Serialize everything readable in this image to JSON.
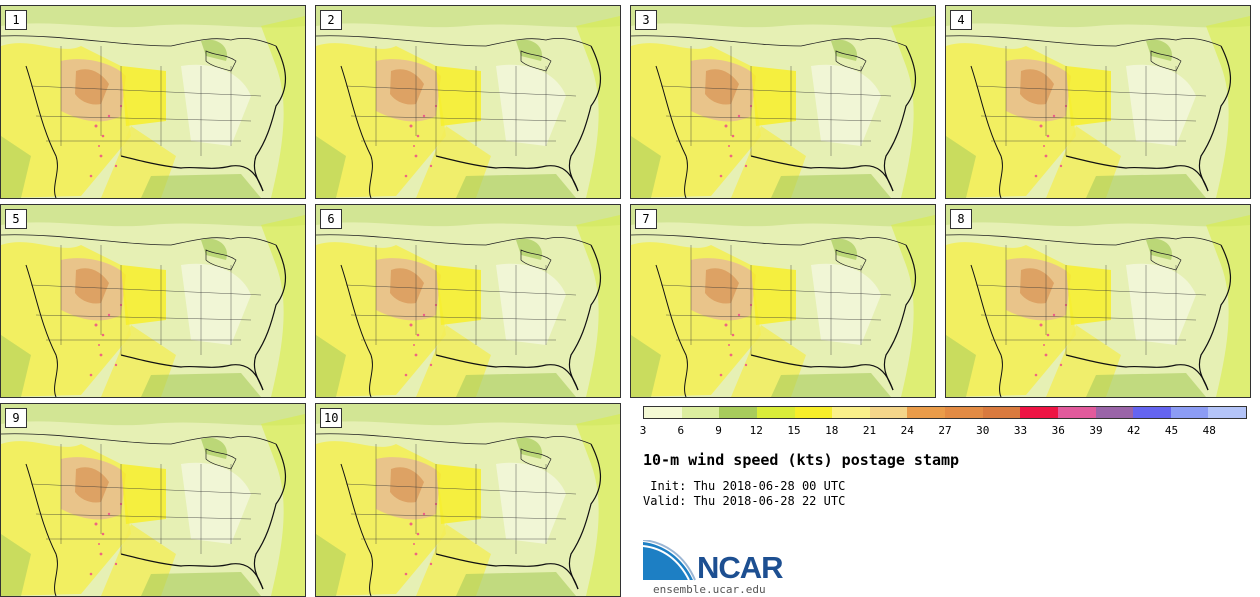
{
  "figure": {
    "title": "10-m wind speed (kts) postage stamp",
    "init": " Init: Thu 2018-06-28 00 UTC",
    "valid": "Valid: Thu 2018-06-28 22 UTC",
    "source": "ensemble.ucar.edu",
    "logo_text": "NCAR"
  },
  "members": [
    "1",
    "2",
    "3",
    "4",
    "5",
    "6",
    "7",
    "8",
    "9",
    "10"
  ],
  "colorbar": {
    "ticks": [
      "3",
      "6",
      "9",
      "12",
      "15",
      "18",
      "21",
      "24",
      "27",
      "30",
      "33",
      "36",
      "39",
      "42",
      "45",
      "48"
    ],
    "colors": [
      "#f4f9d4",
      "#dcee9f",
      "#a8cc5c",
      "#d9ec3a",
      "#f7ee2a",
      "#faf08a",
      "#f4d58a",
      "#ea9c4a",
      "#e38b44",
      "#d97a3e",
      "#ee1444",
      "#e25a9c",
      "#9a64a8",
      "#6464f0",
      "#8c9cf4",
      "#b4c4f8"
    ]
  }
}
